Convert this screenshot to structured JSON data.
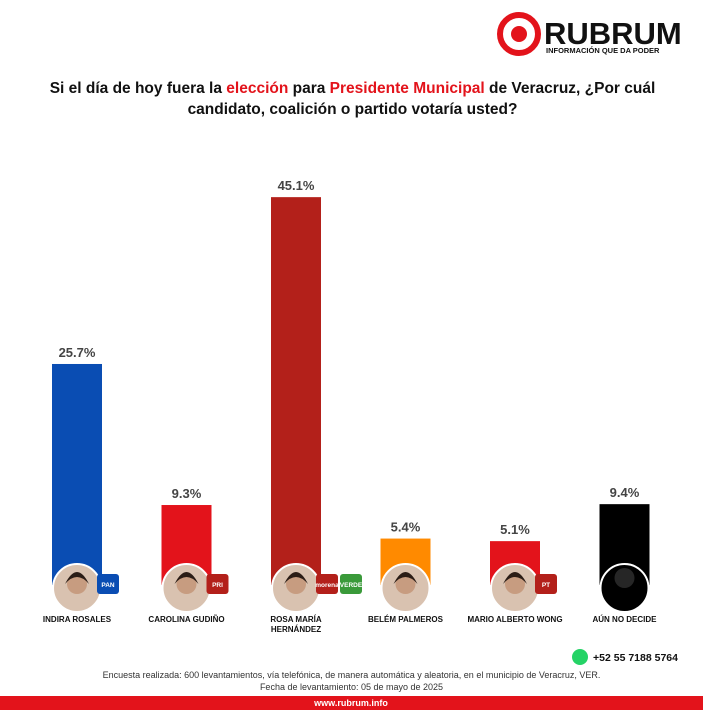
{
  "brand": {
    "name": "RUBRUM",
    "tagline": "INFORMACIÓN QUE DA PODER"
  },
  "chart_data": {
    "type": "bar",
    "title_parts": [
      {
        "text": "Si el día de hoy fuera la ",
        "color": "#111111"
      },
      {
        "text": "elección",
        "color": "#e3131b"
      },
      {
        "text": " para ",
        "color": "#111111"
      },
      {
        "text": "Presidente Municipal",
        "color": "#e3131b"
      },
      {
        "text": " de Veracruz, ¿Por cuál candidato, coalición o partido votaría usted?",
        "color": "#111111"
      }
    ],
    "categories": [
      "INDIRA ROSALES",
      "CAROLINA GUDIÑO",
      "ROSA MARÍA HERNÁNDEZ",
      "BELÉM PALMEROS",
      "MARIO ALBERTO WONG",
      "AÚN NO DECIDE"
    ],
    "values": [
      25.7,
      9.3,
      45.1,
      5.4,
      5.1,
      9.4
    ],
    "value_labels": [
      "25.7%",
      "9.3%",
      "45.1%",
      "5.4%",
      "5.1%",
      "9.4%"
    ],
    "colors": [
      "#0a4db3",
      "#e3131b",
      "#b3201a",
      "#ff8a00",
      "#e3131b",
      "#000000"
    ],
    "party_logos": [
      [
        "PAN"
      ],
      [
        "PRI"
      ],
      [
        "morena",
        "VERDE"
      ],
      [],
      [
        "PT"
      ],
      []
    ]
  },
  "footer": {
    "phone": "+52 55 7188 5764",
    "survey": "Encuesta realizada: 600 levantamientos, vía telefónica, de manera automática y aleatoria, en el municipio de Veracruz, VER.",
    "date": "Fecha de levantamiento: 05 de mayo de 2025",
    "url": "www.rubrum.info"
  }
}
